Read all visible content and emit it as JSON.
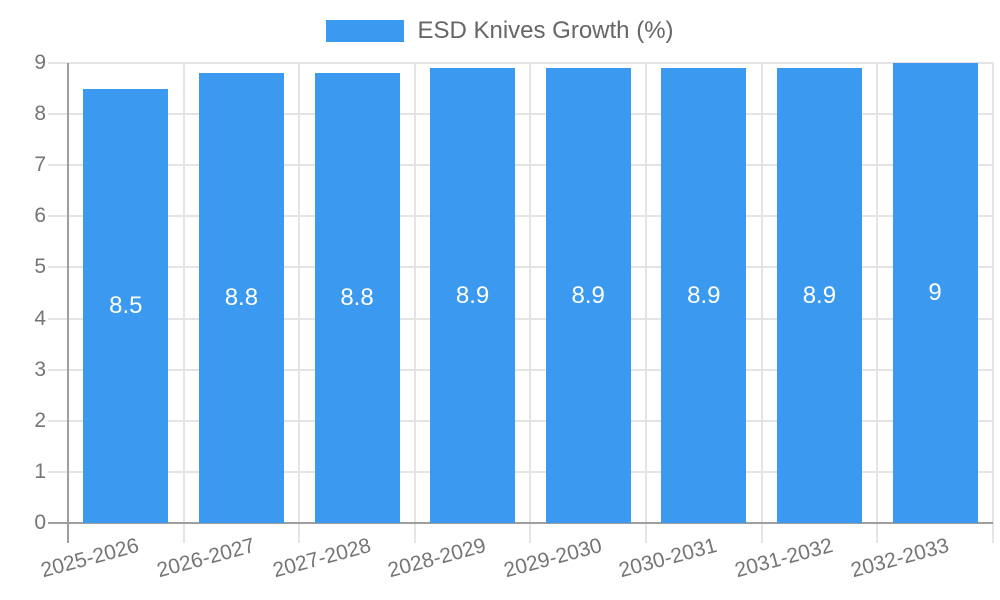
{
  "legend": {
    "label": "ESD Knives Growth (%)"
  },
  "chart_data": {
    "type": "bar",
    "title": "",
    "legend_label": "ESD Knives Growth (%)",
    "legend_position": "top",
    "categories": [
      "2025-2026",
      "2026-2027",
      "2027-2028",
      "2028-2029",
      "2029-2030",
      "2030-2031",
      "2031-2032",
      "2032-2033"
    ],
    "values": [
      8.5,
      8.8,
      8.8,
      8.9,
      8.9,
      8.9,
      8.9,
      9
    ],
    "bar_value_labels": [
      "8.5",
      "8.8",
      "8.8",
      "8.9",
      "8.9",
      "8.9",
      "8.9",
      "9"
    ],
    "xlabel": "",
    "ylabel": "",
    "ylim": [
      0,
      9
    ],
    "ytick_step": 1,
    "yticks": [
      "0",
      "1",
      "2",
      "3",
      "4",
      "5",
      "6",
      "7",
      "8",
      "9"
    ],
    "grid": true,
    "colors": {
      "bar": "#3B99F0",
      "axis": "#9e9e9e",
      "grid": "#e4e4e4",
      "tick_text": "#757575",
      "legend_text": "#666666",
      "value_label": "#ffffff",
      "background": "#ffffff"
    }
  }
}
